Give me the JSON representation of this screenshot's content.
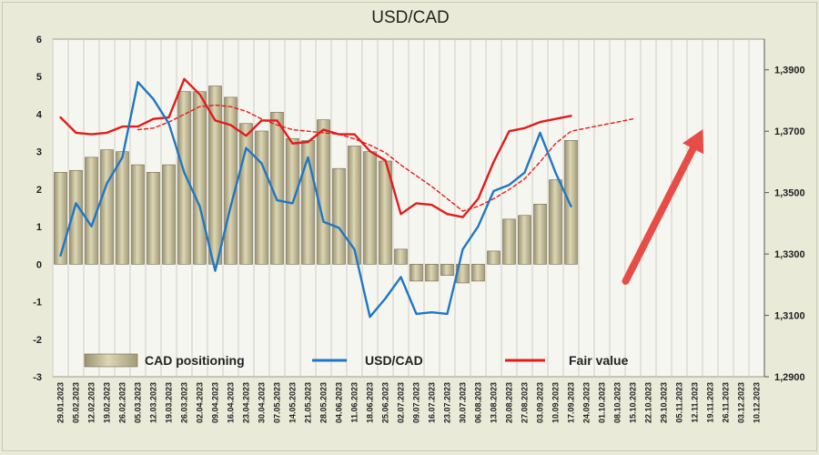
{
  "chart_data": {
    "type": "bar",
    "title": "USD/CAD",
    "colors": {
      "background": "#e9ebd8",
      "plot_background": "#f6f6f0",
      "bars": "#b8b08a",
      "usdcad_line": "#1f77c4",
      "fair_value_line": "#e21c1c",
      "arrow": "#e84c47"
    },
    "categories": [
      "29.01.2023",
      "05.02.2023",
      "12.02.2023",
      "19.02.2023",
      "26.02.2023",
      "05.03.2023",
      "12.03.2023",
      "19.03.2023",
      "26.03.2023",
      "02.04.2023",
      "09.04.2023",
      "16.04.2023",
      "23.04.2023",
      "30.04.2023",
      "07.05.2023",
      "14.05.2023",
      "21.05.2023",
      "28.05.2023",
      "04.06.2023",
      "11.06.2023",
      "18.06.2023",
      "25.06.2023",
      "02.07.2023",
      "09.07.2023",
      "16.07.2023",
      "23.07.2023",
      "30.07.2023",
      "06.08.2023",
      "13.08.2023",
      "20.08.2023",
      "27.08.2023",
      "03.09.2023",
      "10.09.2023",
      "17.09.2023",
      "24.09.2023",
      "01.10.2023",
      "08.10.2023",
      "15.10.2023",
      "22.10.2023",
      "29.10.2023",
      "05.11.2023",
      "12.11.2023",
      "19.11.2023",
      "26.11.2023",
      "03.12.2023",
      "10.12.2023"
    ],
    "left_axis": {
      "ylim": [
        -3,
        6
      ],
      "ticks": [
        -3,
        -2,
        -1,
        0,
        1,
        2,
        3,
        4,
        5,
        6
      ]
    },
    "right_axis": {
      "ylim": [
        1.29,
        1.4
      ],
      "ticks": [
        "1,2900",
        "1,3100",
        "1,3300",
        "1,3500",
        "1,3700",
        "1,3900"
      ]
    },
    "series": [
      {
        "name": "CAD positioning",
        "type": "bar",
        "axis": "left",
        "values": [
          2.45,
          2.5,
          2.85,
          3.05,
          3.0,
          2.65,
          2.45,
          2.65,
          4.6,
          4.6,
          4.75,
          4.45,
          3.75,
          3.55,
          4.05,
          3.35,
          3.3,
          3.85,
          2.55,
          3.15,
          3.0,
          2.75,
          0.4,
          -0.45,
          -0.45,
          -0.3,
          -0.5,
          -0.45,
          0.35,
          1.2,
          1.3,
          1.6,
          2.25,
          3.3,
          null,
          null,
          null,
          null,
          null,
          null,
          null,
          null,
          null,
          null,
          null,
          null
        ]
      },
      {
        "name": "USD/CAD",
        "type": "line",
        "axis": "right",
        "values": [
          1.3295,
          1.3465,
          1.339,
          1.353,
          1.3615,
          1.386,
          1.3805,
          1.3725,
          1.3565,
          1.3455,
          1.3245,
          1.3455,
          1.3645,
          1.3595,
          1.3475,
          1.3465,
          1.3615,
          1.3405,
          1.3385,
          1.3315,
          1.3095,
          1.3155,
          1.3225,
          1.3105,
          1.311,
          1.3105,
          1.3315,
          1.339,
          1.3505,
          1.3525,
          1.3565,
          1.3695,
          1.3565,
          1.3455,
          null,
          null,
          null,
          null,
          null,
          null,
          null,
          null,
          null,
          null,
          null,
          null
        ]
      },
      {
        "name": "Fair value",
        "type": "line",
        "axis": "right",
        "values": [
          1.3745,
          1.3695,
          1.369,
          1.3695,
          1.3715,
          1.3715,
          1.374,
          1.3745,
          1.387,
          1.382,
          1.3735,
          1.372,
          1.3685,
          1.3735,
          1.3735,
          1.366,
          1.3665,
          1.3705,
          1.369,
          1.369,
          1.3635,
          1.3605,
          1.343,
          1.3465,
          1.346,
          1.343,
          1.342,
          1.348,
          1.36,
          1.37,
          1.371,
          1.373,
          1.374,
          1.375,
          null,
          null,
          null,
          null,
          null,
          null,
          null,
          null,
          null,
          null,
          null,
          null
        ]
      },
      {
        "name": "Fair value (forecast)",
        "type": "line",
        "dashed": true,
        "axis": "right",
        "values": [
          null,
          null,
          null,
          null,
          null,
          1.3705,
          1.371,
          1.373,
          1.3755,
          1.378,
          1.3785,
          1.378,
          1.3765,
          1.374,
          1.372,
          1.3705,
          1.37,
          1.3695,
          1.369,
          1.3675,
          1.3655,
          1.363,
          1.359,
          1.3555,
          1.352,
          1.348,
          1.344,
          1.3455,
          1.348,
          1.351,
          1.3545,
          1.36,
          1.366,
          1.37,
          1.371,
          1.372,
          1.373,
          1.374,
          null,
          null,
          null,
          null,
          null,
          null,
          null,
          null
        ]
      }
    ],
    "legend": {
      "placement": "bottom",
      "entries": [
        "CAD positioning",
        "USD/CAD",
        "Fair value"
      ]
    },
    "annotations": [
      {
        "type": "arrow",
        "direction": "up-right",
        "color": "#e84c47"
      }
    ],
    "grid": "vertical"
  }
}
